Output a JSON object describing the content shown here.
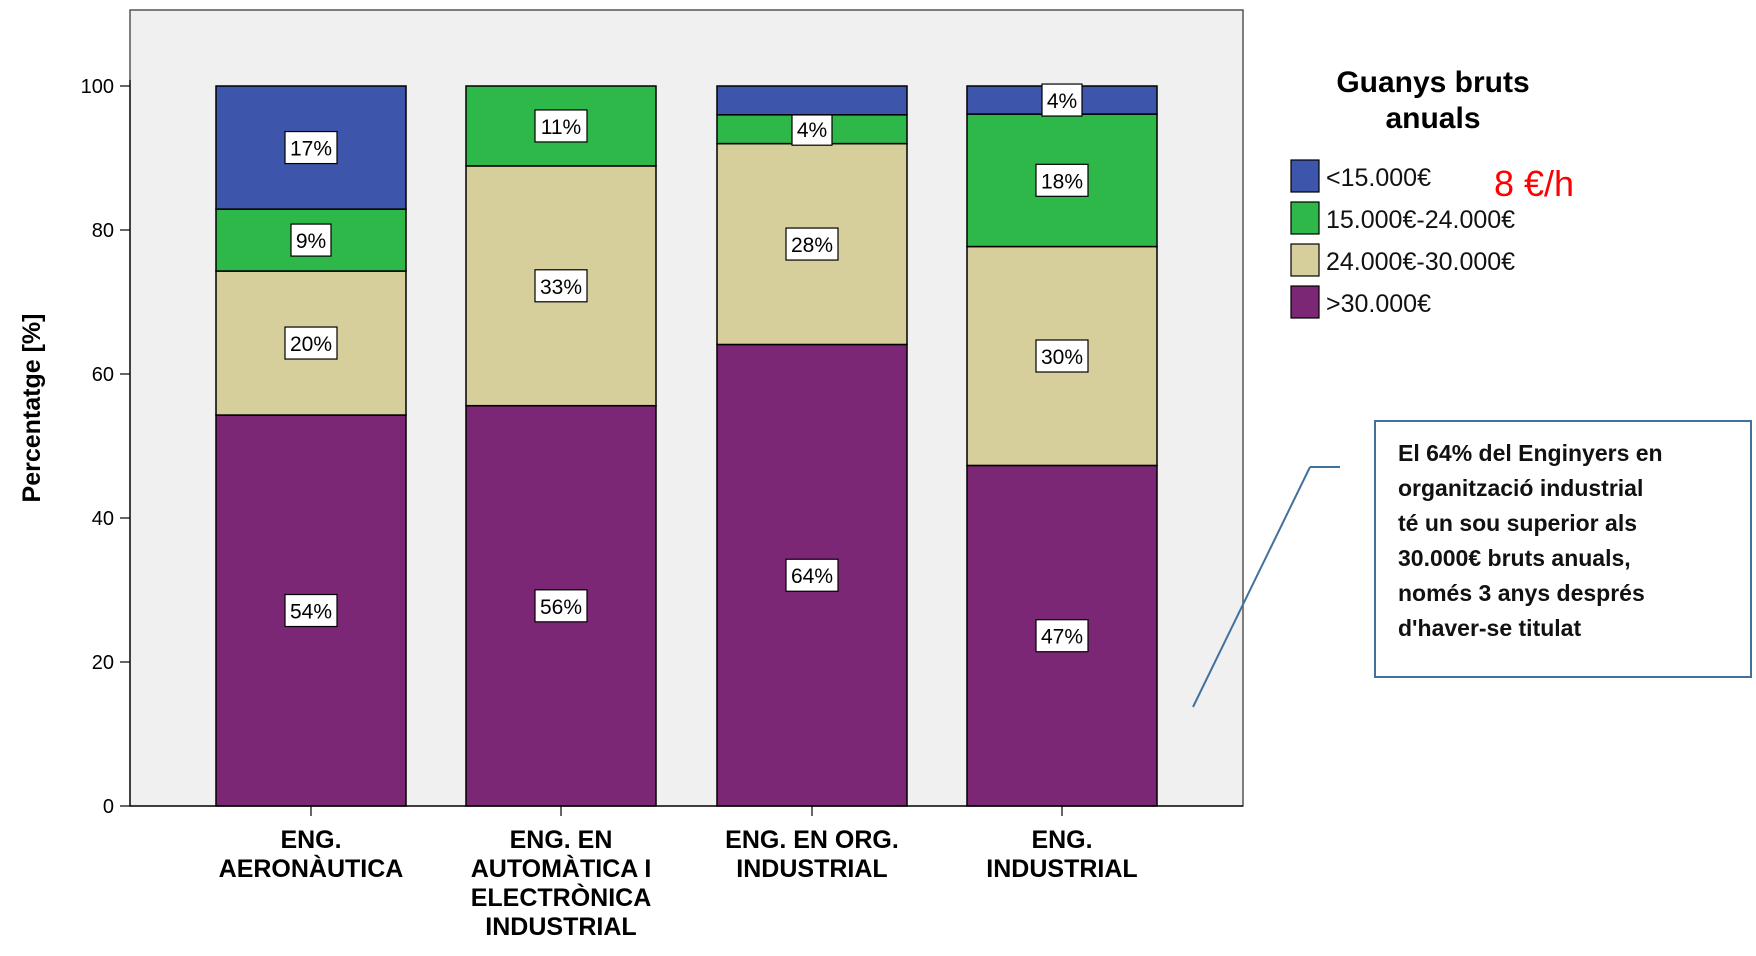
{
  "chart_data": {
    "type": "bar",
    "stacked": true,
    "categories": [
      [
        "ENG.",
        "AERONÀUTICA"
      ],
      [
        "ENG. EN",
        "AUTOMÀTICA I",
        "ELECTRÒNICA",
        "INDUSTRIAL"
      ],
      [
        "ENG. EN ORG.",
        "INDUSTRIAL"
      ],
      [
        "ENG.",
        "INDUSTRIAL"
      ]
    ],
    "series": [
      {
        "name": ">30.000€",
        "color": "#7b2775",
        "values": [
          54.3,
          55.6,
          64.1,
          47.3
        ],
        "labels": [
          "54%",
          "56%",
          "64%",
          "47%"
        ]
      },
      {
        "name": "24.000€-30.000€",
        "color": "#d6cf9b",
        "values": [
          20.0,
          33.3,
          27.9,
          30.4
        ],
        "labels": [
          "20%",
          "33%",
          "28%",
          "30%"
        ]
      },
      {
        "name": "15.000€-24.000€",
        "color": "#2fb84a",
        "values": [
          8.6,
          11.1,
          4.0,
          18.4
        ],
        "labels": [
          "9%",
          "11%",
          "4%",
          "18%"
        ]
      },
      {
        "name": "<15.000€",
        "color": "#3d55aa",
        "values": [
          17.1,
          0,
          4.0,
          3.9
        ],
        "labels": [
          "17%",
          "",
          "",
          "4%"
        ]
      }
    ],
    "ylabel": "Percentatge [%]",
    "ylim": [
      0,
      110
    ],
    "yticks": [
      0,
      20,
      40,
      60,
      80,
      100
    ],
    "legend": {
      "title_lines": [
        "Guanys bruts",
        "anuals"
      ],
      "order": [
        "<15.000€",
        "15.000€-24.000€",
        "24.000€-30.000€",
        ">30.000€"
      ],
      "placement": "right",
      "note": "8 €/h"
    },
    "grid": false,
    "plot_background": "#f0f0f0"
  },
  "annotation": {
    "lines": [
      "El 64% del Enginyers en",
      "organització industrial",
      "té un sou superior als",
      "30.000€ bruts anuals,",
      "només 3 anys després",
      "d'haver-se titulat"
    ],
    "border_color": "#41719c"
  }
}
